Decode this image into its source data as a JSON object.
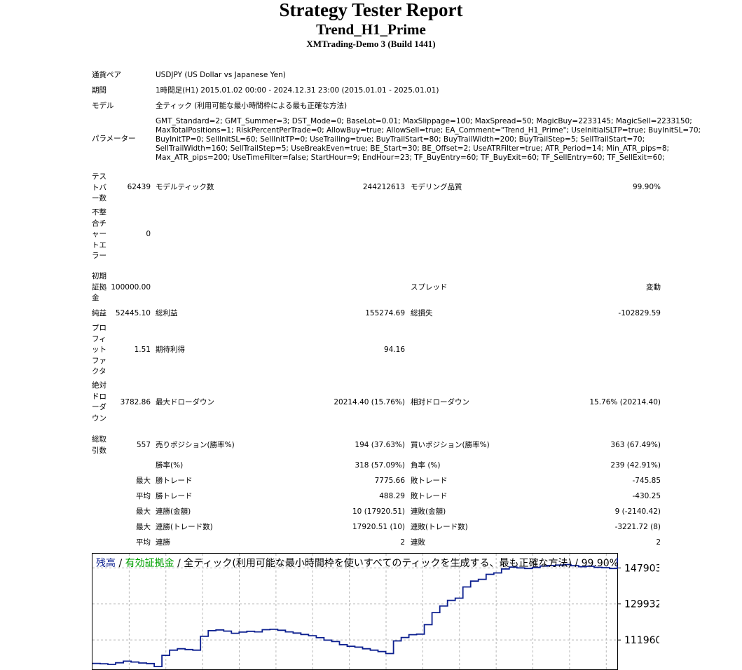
{
  "report": {
    "title": "Strategy Tester Report",
    "ea_name": "Trend_H1_Prime",
    "server": "XMTrading-Demo 3 (Build 1441)"
  },
  "info": {
    "symbol_label": "通貨ペア",
    "symbol_value": "USDJPY (US Dollar vs Japanese Yen)",
    "period_label": "期間",
    "period_value": "1時間足(H1) 2015.01.02 00:00 - 2024.12.31 23:00 (2015.01.01 - 2025.01.01)",
    "model_label": "モデル",
    "model_value": "全ティック (利用可能な最小時間枠による最も正確な方法)",
    "params_label": "パラメーター",
    "params_lines": [
      "GMT_Standard=2; GMT_Summer=3; DST_Mode=0; BaseLot=0.01; MaxSlippage=100; MaxSpread=50; MagicBuy=2233145; MagicSell=2233150;",
      "MaxTotalPositions=1; RiskPercentPerTrade=0; AllowBuy=true; AllowSell=true; EA_Comment=\"Trend_H1_Prime\"; UseInitialSLTP=true; BuyInitSL=70;",
      "BuyInitTP=0; SellInitSL=60; SellInitTP=0; UseTrailing=true; BuyTrailStart=80; BuyTrailWidth=200; BuyTrailStep=5; SellTrailStart=70;",
      "SellTrailWidth=160; SellTrailStep=5; UseBreakEven=true; BE_Start=30; BE_Offset=2; UseATRFilter=true; ATR_Period=14; Min_ATR_pips=8;",
      "Max_ATR_pips=200; UseTimeFilter=false; StartHour=9; EndHour=23; TF_BuyEntry=60; TF_BuyExit=60; TF_SellEntry=60; TF_SellExit=60;"
    ]
  },
  "stats": {
    "bars_label": [
      "テス",
      "トバ",
      "ー数"
    ],
    "bars_value": "62439",
    "ticks_label": "モデルティック数",
    "ticks_value": "244212613",
    "quality_label": "モデリング品質",
    "quality_value": "99.90%",
    "mismatch_label": [
      "不整",
      "合チ",
      "ャー",
      "トエ",
      "ラー"
    ],
    "mismatch_value": "0",
    "deposit_label": [
      "初期",
      "証拠",
      "金"
    ],
    "deposit_value": "100000.00",
    "spread_label": "スプレッド",
    "spread_value": "変動",
    "net_label": "純益",
    "net_value": "52445.10",
    "gross_profit_label": "総利益",
    "gross_profit_value": "155274.69",
    "gross_loss_label": "総損失",
    "gross_loss_value": "-102829.59",
    "pf_label": [
      "プロ",
      "フィ",
      "ット",
      "ファ",
      "クタ"
    ],
    "pf_value": "1.51",
    "payoff_label": "期待利得",
    "payoff_value": "94.16",
    "abs_dd_label": [
      "絶対",
      "ドロ",
      "ーダ",
      "ウン"
    ],
    "abs_dd_value": "3782.86",
    "max_dd_label": "最大ドローダウン",
    "max_dd_value": "20214.40 (15.76%)",
    "rel_dd_label": "相対ドローダウン",
    "rel_dd_value": "15.76% (20214.40)",
    "trades_label": [
      "総取",
      "引数"
    ],
    "trades_value": "557",
    "short_label": "売りポジション(勝率%)",
    "short_value": "194 (37.63%)",
    "long_label": "買いポジション(勝率%)",
    "long_value": "363 (67.49%)",
    "winrate_label": "勝率(%)",
    "winrate_value": "318 (57.09%)",
    "lossrate_label": "負率 (%)",
    "lossrate_value": "239 (42.91%)",
    "rows": [
      {
        "prefix": "最大",
        "l1": "勝トレード",
        "v1": "7775.66",
        "l2": "敗トレード",
        "v2": "-745.85"
      },
      {
        "prefix": "平均",
        "l1": "勝トレード",
        "v1": "488.29",
        "l2": "敗トレード",
        "v2": "-430.25"
      },
      {
        "prefix": "最大",
        "l1": "連勝(金額)",
        "v1": "10 (17920.51)",
        "l2": "連敗(金額)",
        "v2": "9 (-2140.42)"
      },
      {
        "prefix": "最大",
        "l1": "連勝(トレード数)",
        "v1": "17920.51 (10)",
        "l2": "連敗(トレード数)",
        "v2": "-3221.72 (8)"
      },
      {
        "prefix": "平均",
        "l1": "連勝",
        "v1": "2",
        "l2": "連敗",
        "v2": "2"
      }
    ]
  },
  "chart_data": {
    "type": "line",
    "legend": {
      "balance": "残高",
      "sep1": " / ",
      "equity": "有効証拠金",
      "sep2": " / ",
      "model": "全ティック(利用可能な最小時間枠を使いすべてのティックを生成する、最も正確な方法) / 99.90%"
    },
    "colors": {
      "balance": "#0b1f8f",
      "equity": "#00a000",
      "grid": "#b8b8b8"
    },
    "y_ticks": [
      "147903",
      "129932",
      "111960"
    ],
    "grid": true,
    "ylim": [
      97000,
      155000
    ],
    "series": [
      {
        "name": "残高",
        "values": [
          100300,
          100100,
          99800,
          100600,
          101400,
          101000,
          100500,
          100200,
          98700,
          104300,
          106900,
          107600,
          107200,
          106900,
          113800,
          116600,
          117000,
          116400,
          115300,
          115900,
          116300,
          116000,
          117100,
          117300,
          116800,
          116000,
          115400,
          114700,
          114100,
          113100,
          111900,
          111200,
          109600,
          108800,
          108400,
          107600,
          106900,
          106200,
          105200,
          111500,
          113200,
          114600,
          114900,
          119600,
          125600,
          128900,
          131700,
          132800,
          138400,
          141300,
          142200,
          144700,
          145400,
          147400,
          148300,
          147900,
          147600,
          148100,
          148800,
          149100,
          149300,
          149600,
          149000,
          148500,
          148700,
          148200,
          148000,
          147600,
          153000
        ]
      }
    ]
  }
}
